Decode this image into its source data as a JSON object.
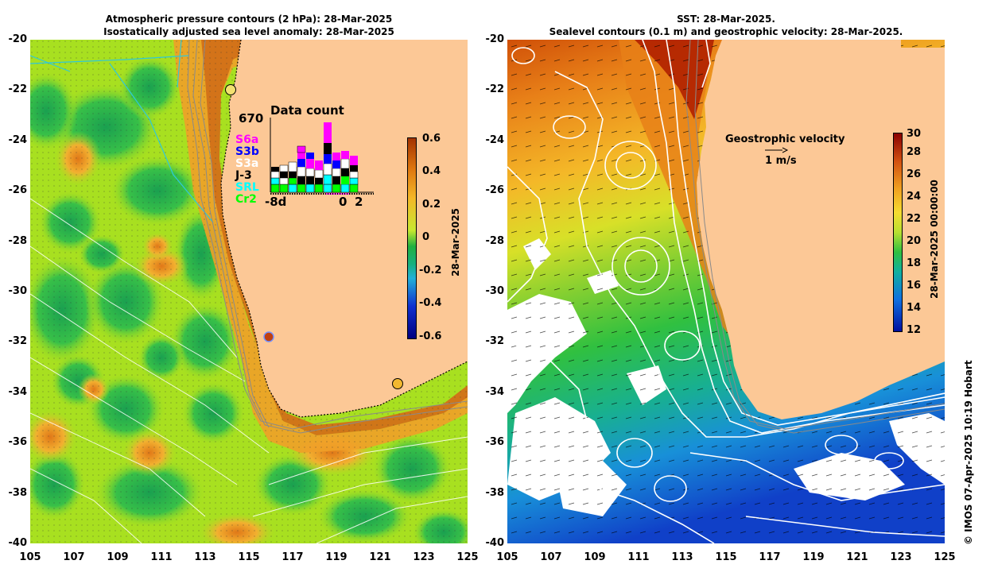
{
  "left_panel": {
    "title_line1": "Atmospheric pressure contours (2 hPa): 28-Mar-2025",
    "title_line2": "Isostatically adjusted sea level anomaly: 28-Mar-2025",
    "colorbar": {
      "label": "28-Mar-2025",
      "ticks": [
        "0.6",
        "0.4",
        "0.2",
        "0",
        "-0.2",
        "-0.4",
        "-0.6"
      ],
      "colors": [
        "#a33300",
        "#e07a10",
        "#f4b828",
        "#c8e830",
        "#20b040",
        "#22b0d8",
        "#1030d0",
        "#000080"
      ]
    },
    "inset": {
      "title": "Data count",
      "max_count": "670",
      "missions": [
        {
          "name": "S6a",
          "color": "#ff00ff"
        },
        {
          "name": "S3b",
          "color": "#0000ff"
        },
        {
          "name": "S3a",
          "color": "#ffffff"
        },
        {
          "name": "J-3",
          "color": "#000000"
        },
        {
          "name": "SRL",
          "color": "#00ffff"
        },
        {
          "name": "Cr2",
          "color": "#00ff00"
        }
      ],
      "x_start": "-8d",
      "x_zero": "0",
      "x_end": "2"
    }
  },
  "right_panel": {
    "title_line1": "SST: 28-Mar-2025.",
    "title_line2": "Sealevel contours (0.1 m) and geostrophic velocity: 28-Mar-2025.",
    "velocity_label": "Geostrophic velocity",
    "velocity_scale": "1 m/s",
    "colorbar": {
      "label": "28-Mar-2025 00:00:00",
      "ticks": [
        "30",
        "28",
        "26",
        "24",
        "22",
        "20",
        "18",
        "16",
        "14",
        "12"
      ],
      "colors": [
        "#8a0000",
        "#d25010",
        "#f0a020",
        "#f5dc30",
        "#b8e030",
        "#30c040",
        "#10b0a0",
        "#1070e0",
        "#0010a0"
      ]
    }
  },
  "axes": {
    "y_ticks": [
      "-20",
      "-22",
      "-24",
      "-26",
      "-28",
      "-30",
      "-32",
      "-34",
      "-36",
      "-38",
      "-40"
    ],
    "x_ticks": [
      "105",
      "107",
      "109",
      "111",
      "113",
      "115",
      "117",
      "119",
      "121",
      "123",
      "125"
    ]
  },
  "credit": "© IMOS 07-Apr-2025 10:19 Hobart",
  "colors": {
    "land": "#fcc896",
    "sla_base": "#a8e020",
    "sla_low": "#28b848",
    "sla_high": "#f0a028",
    "sst_warm": "#a01000",
    "sst_mid": "#f0b020",
    "sst_cool": "#30c040",
    "sst_cold": "#1060d0"
  }
}
